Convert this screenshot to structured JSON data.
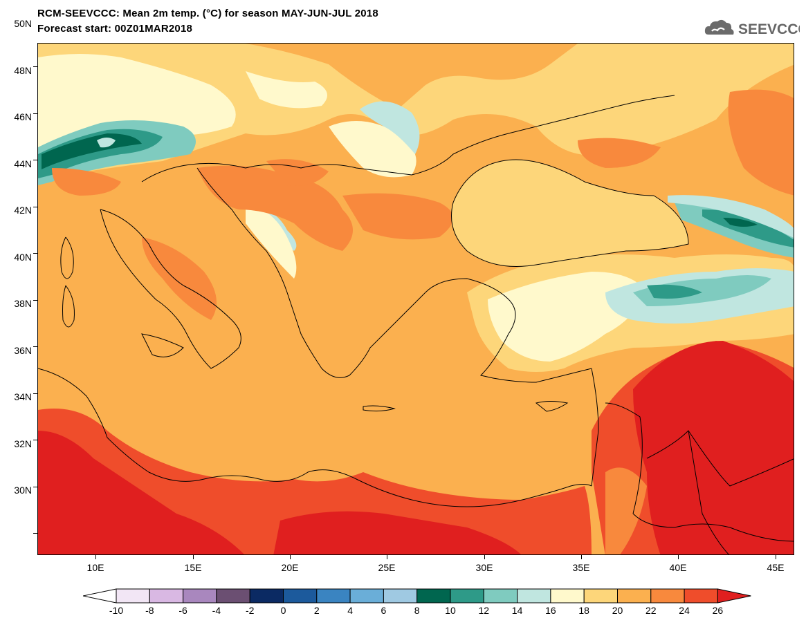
{
  "title": {
    "line1": "RCM-SEEVCCC: Mean 2m temp. (°C) for season MAY-JUN-JUL 2018",
    "line2": "Forecast start: 00Z01MAR2018"
  },
  "logo": {
    "text": "SEEVCCC",
    "icon": "cloud-icon",
    "color": "#666666"
  },
  "map": {
    "lon_range": [
      7,
      46
    ],
    "lat_range": [
      29,
      51
    ],
    "lat_ticks": [
      "50N",
      "48N",
      "46N",
      "44N",
      "42N",
      "40N",
      "38N",
      "36N",
      "34N",
      "32N",
      "30N"
    ],
    "lon_ticks": [
      "10E",
      "15E",
      "20E",
      "25E",
      "30E",
      "35E",
      "40E",
      "45E"
    ],
    "lat_values": [
      50,
      48,
      46,
      44,
      42,
      40,
      38,
      36,
      34,
      32,
      30
    ],
    "lon_values": [
      10,
      15,
      20,
      25,
      30,
      35,
      40,
      45
    ]
  },
  "colorbar": {
    "labels": [
      "-10",
      "-8",
      "-6",
      "-4",
      "-2",
      "0",
      "2",
      "4",
      "6",
      "8",
      "10",
      "12",
      "14",
      "16",
      "18",
      "20",
      "22",
      "24",
      "26"
    ],
    "colors": [
      "#f2e6f5",
      "#d9b8e3",
      "#a987be",
      "#6b4f72",
      "#0b2a63",
      "#1c5a9c",
      "#3a84c1",
      "#6aaed8",
      "#9fc9e2",
      "#00664f",
      "#2e9a88",
      "#7fcbbf",
      "#c0e6e0",
      "#fff9cc",
      "#fdd67a",
      "#fbb04f",
      "#f8893d",
      "#ef4d2b"
    ],
    "under_color": "#ffffff",
    "over_color": "#e01f1f"
  }
}
